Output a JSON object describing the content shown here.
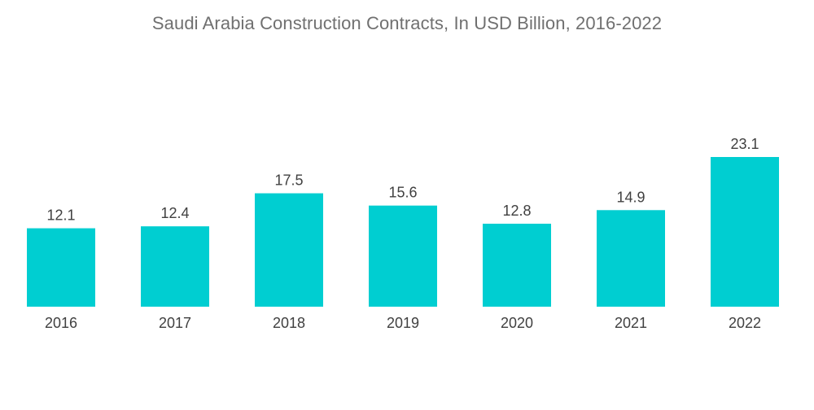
{
  "chart_data": {
    "type": "bar",
    "title": "Saudi Arabia Construction Contracts, In USD Billion, 2016-2022",
    "categories": [
      "2016",
      "2017",
      "2018",
      "2019",
      "2020",
      "2021",
      "2022"
    ],
    "values": [
      12.1,
      12.4,
      17.5,
      15.6,
      12.8,
      14.9,
      23.1
    ],
    "data_labels": [
      "12.1",
      "12.4",
      "17.5",
      "15.6",
      "12.8",
      "14.9",
      "23.1"
    ],
    "xlabel": "",
    "ylabel": "",
    "ylim": [
      0,
      23.1
    ],
    "grid": false,
    "legend": "none",
    "bar_color": "#00CED1"
  }
}
